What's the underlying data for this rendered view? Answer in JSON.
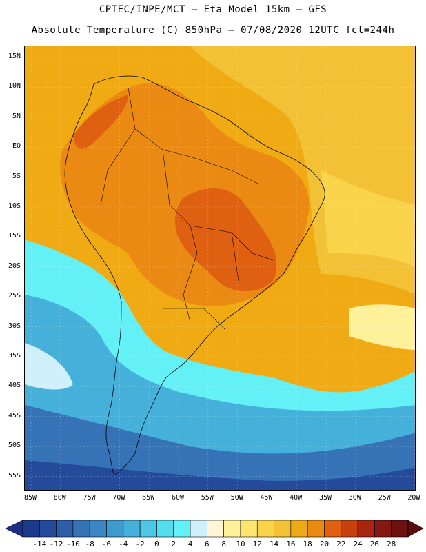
{
  "title": {
    "line1": "CPTEC/INPE/MCT –  Eta Model 15km – GFS",
    "line2": "Absolute Temperature (C) 850hPa – 07/08/2020 12UTC fct=244h"
  },
  "map": {
    "region": "South America",
    "lat_labels": [
      "15N",
      "10N",
      "5N",
      "EQ",
      "5S",
      "10S",
      "15S",
      "20S",
      "25S",
      "30S",
      "35S",
      "40S",
      "45S",
      "50S",
      "55S"
    ],
    "lon_labels": [
      "85W",
      "80W",
      "75W",
      "70W",
      "65W",
      "60W",
      "55W",
      "50W",
      "45W",
      "40W",
      "35W",
      "30W",
      "25W",
      "20W"
    ]
  },
  "colorbar": {
    "tick_labels": [
      "-14",
      "-12",
      "-10",
      "-8",
      "-6",
      "-4",
      "-2",
      "0",
      "2",
      "4",
      "6",
      "8",
      "10",
      "12",
      "14",
      "16",
      "18",
      "20",
      "22",
      "24",
      "26",
      "28"
    ],
    "colors": [
      "#1b3a8c",
      "#244b9a",
      "#2d5ea9",
      "#3572b6",
      "#3b86c3",
      "#3f9bcf",
      "#45b1db",
      "#4cc8e6",
      "#56dcef",
      "#63f0f7",
      "#cfeffa",
      "#fff6d8",
      "#fff19a",
      "#fde56f",
      "#f9d44a",
      "#f3c136",
      "#eeaa14",
      "#ea8a12",
      "#de6010",
      "#c9400f",
      "#a82510",
      "#84190f",
      "#6c1010"
    ],
    "under_color": "#1f2f88",
    "over_color": "#5a0c0c"
  },
  "palette": {
    "ocean_warm": "#efaa14",
    "ocean_mid": "#f3c136",
    "land_warm": "#ea8a12",
    "land_hot": "#de6010",
    "cold_1": "#63f0f7",
    "cold_2": "#45b1db",
    "cold_3": "#3572b6",
    "cold_4": "#244b9a",
    "pale": "#fff19a"
  }
}
